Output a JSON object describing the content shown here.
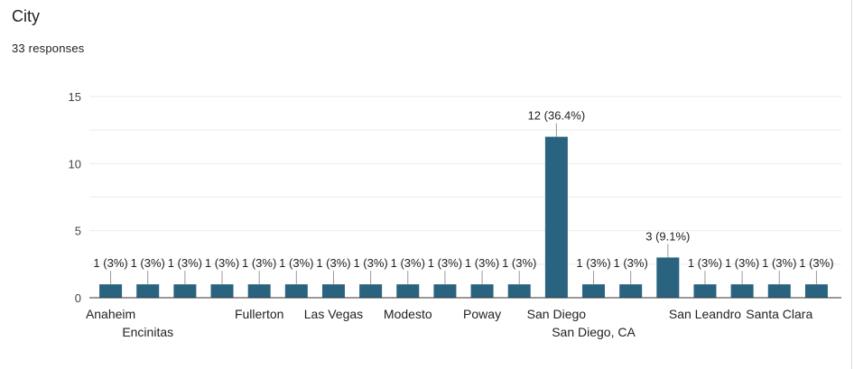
{
  "header": {
    "title": "City",
    "responses": "33 responses"
  },
  "colors": {
    "bar": "#2a6380",
    "grid": "#ebebeb",
    "axis": "#333333",
    "text": "#222222"
  },
  "chart_data": {
    "type": "bar",
    "categories": [
      "Anaheim",
      "Encinitas",
      "",
      "",
      "Fullerton",
      "",
      "Las Vegas",
      "",
      "Modesto",
      "",
      "Poway",
      "",
      "San Diego",
      "San Diego, CA",
      "",
      "",
      "San Leandro",
      "",
      "Santa Clara",
      ""
    ],
    "values": [
      1,
      1,
      1,
      1,
      1,
      1,
      1,
      1,
      1,
      1,
      1,
      1,
      12,
      1,
      1,
      3,
      1,
      1,
      1,
      1
    ],
    "data_labels": [
      "1 (3%)",
      "1 (3%)",
      "1 (3%)",
      "1 (3%)",
      "1 (3%)",
      "1 (3%)",
      "1 (3%)",
      "1 (3%)",
      "1 (3%)",
      "1 (3%)",
      "1 (3%)",
      "1 (3%)",
      "12 (36.4%)",
      "1 (3%)",
      "1 (3%)",
      "3 (9.1%)",
      "1 (3%)",
      "1 (3%)",
      "1 (3%)",
      "1 (3%)"
    ],
    "y_ticks": [
      "0",
      "5",
      "10",
      "15"
    ],
    "ylim": [
      0,
      15
    ],
    "grid": true
  }
}
